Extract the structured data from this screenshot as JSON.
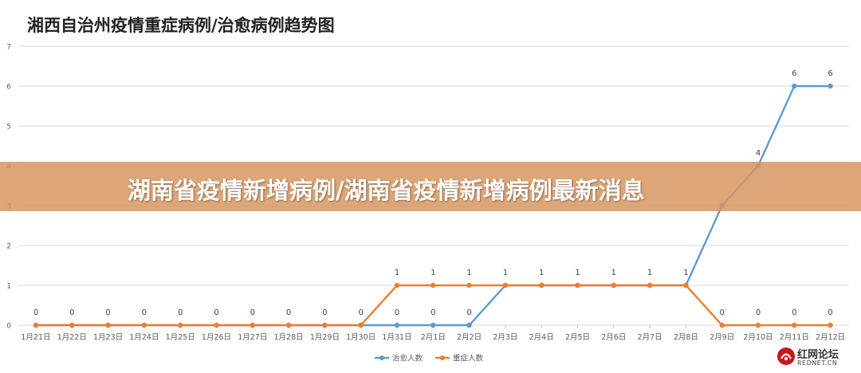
{
  "banner": {
    "text": "湖南省疫情新增病例/湖南省疫情新增病例最新消息"
  },
  "watermark": {
    "name": "红网论坛",
    "sub": "REDNET.CN"
  },
  "colors": {
    "cured": "#5b9bd5",
    "severe": "#ed7d31",
    "grid": "#d9d9d9",
    "banner": "#d69660"
  },
  "chart_data": {
    "type": "line",
    "title": "湘西自治州疫情重症病例/治愈病例趋势图",
    "categories": [
      "1月21日",
      "1月22日",
      "1月23日",
      "1月24日",
      "1月25日",
      "1月26日",
      "1月27日",
      "1月28日",
      "1月29日",
      "1月30日",
      "1月31日",
      "2月1日",
      "2月2日",
      "2月3日",
      "2月4日",
      "2月5日",
      "2月6日",
      "2月7日",
      "2月8日",
      "2月9日",
      "2月10日",
      "2月11日",
      "2月12日"
    ],
    "ylim": [
      0,
      7
    ],
    "yticks": [
      0,
      1,
      2,
      3,
      4,
      5,
      6,
      7
    ],
    "grid": true,
    "legend_position": "bottom",
    "series": [
      {
        "name": "治愈人数",
        "color": "#5b9bd5",
        "values": [
          0,
          0,
          0,
          0,
          0,
          0,
          0,
          0,
          0,
          0,
          0,
          0,
          0,
          1,
          1,
          1,
          1,
          1,
          1,
          3,
          4,
          6,
          6
        ],
        "labels": [
          null,
          null,
          null,
          null,
          null,
          null,
          null,
          null,
          null,
          null,
          "0",
          "0",
          "0",
          null,
          null,
          null,
          null,
          null,
          null,
          null,
          "4",
          "6",
          "6"
        ]
      },
      {
        "name": "重症人数",
        "color": "#ed7d31",
        "values": [
          0,
          0,
          0,
          0,
          0,
          0,
          0,
          0,
          0,
          0,
          1,
          1,
          1,
          1,
          1,
          1,
          1,
          1,
          1,
          0,
          0,
          0,
          0
        ],
        "labels": [
          "0",
          "0",
          "0",
          "0",
          "0",
          "0",
          "0",
          "0",
          "0",
          "0",
          "1",
          "1",
          "1",
          "1",
          "1",
          "1",
          "1",
          "1",
          "1",
          "0",
          "0",
          "0",
          "0"
        ]
      }
    ]
  }
}
